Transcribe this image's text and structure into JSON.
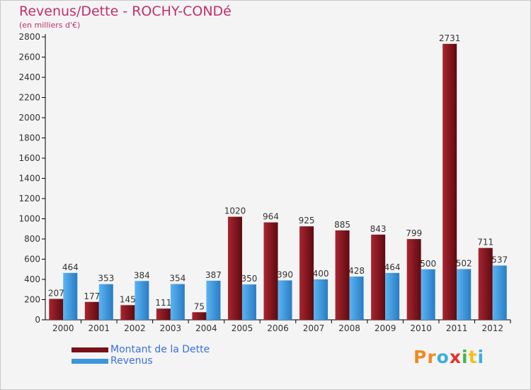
{
  "title": "Revenus/Dette - ROCHY-CONDé",
  "subtitle": "(en milliers d'€)",
  "logo": [
    "P",
    "r",
    "o",
    "x",
    "i",
    "t",
    "i"
  ],
  "colors": {
    "dette": "#7a0f17",
    "revenus": "#3c96dc",
    "title": "#c0306a",
    "legend_text": "#3b6fe0",
    "logo": [
      "#f08a24",
      "#f08a24",
      "#3aaee0",
      "#e8302c",
      "#44b649",
      "#f0c020",
      "#3aaee0"
    ]
  },
  "chart_data": {
    "type": "bar",
    "title": "Revenus/Dette - ROCHY-CONDé",
    "ylabel": "(en milliers d'€)",
    "xlabel": "",
    "categories": [
      "2000",
      "2001",
      "2002",
      "2003",
      "2004",
      "2005",
      "2006",
      "2007",
      "2008",
      "2009",
      "2010",
      "2011",
      "2012"
    ],
    "series": [
      {
        "name": "Montant de la Dette",
        "values": [
          207,
          177,
          145,
          111,
          75,
          1020,
          964,
          925,
          885,
          843,
          799,
          2731,
          711
        ]
      },
      {
        "name": "Revenus",
        "values": [
          464,
          353,
          384,
          354,
          387,
          350,
          390,
          400,
          428,
          464,
          500,
          502,
          537
        ]
      }
    ],
    "ylim": [
      0,
      2800
    ],
    "yticks": [
      0,
      200,
      400,
      600,
      800,
      1000,
      1200,
      1400,
      1600,
      1800,
      2000,
      2200,
      2400,
      2600,
      2800
    ],
    "grid": false,
    "legend": "bottom-left"
  }
}
